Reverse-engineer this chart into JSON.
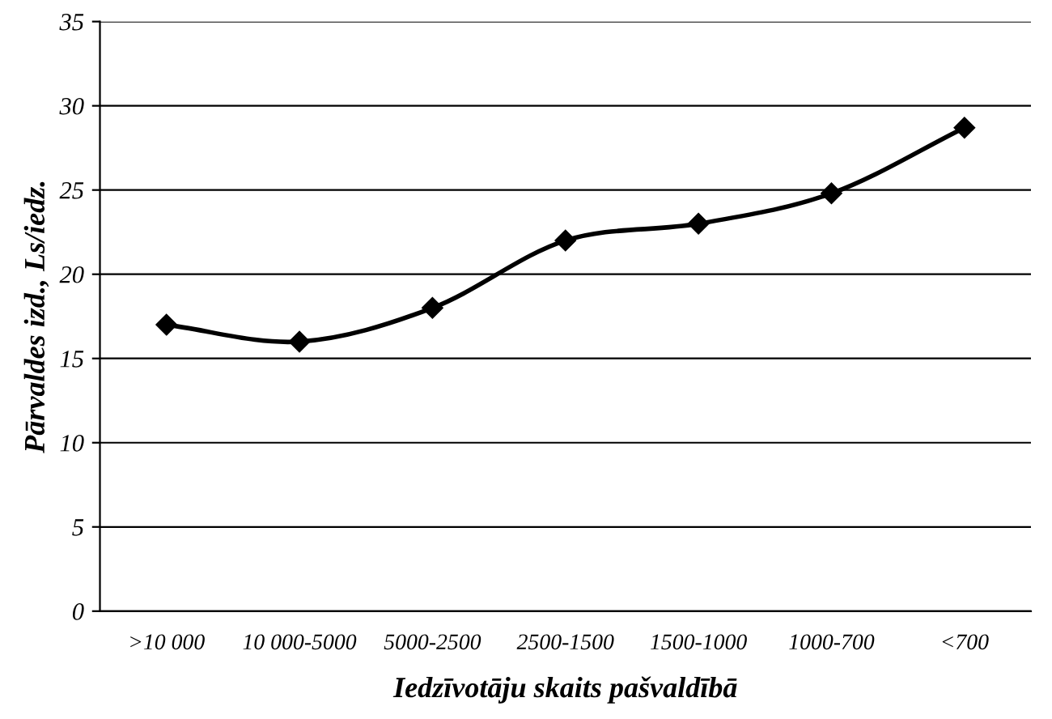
{
  "chart_data": {
    "type": "line",
    "xlabel": "Iedzīvotāju skaits pašvaldībā",
    "ylabel": "Pārvaldes izd., Ls/iedz.",
    "categories": [
      ">10 000",
      "10 000-5000",
      "5000-2500",
      "2500-1500",
      "1500-1000",
      "1000-700",
      "<700"
    ],
    "series": [
      {
        "color": "#000000",
        "values": [
          17,
          16,
          18,
          22,
          23,
          24.8,
          28.7
        ]
      }
    ],
    "ylim": [
      0,
      35
    ],
    "yticks": [
      0,
      5,
      10,
      15,
      20,
      25,
      30,
      35
    ],
    "grid": "y",
    "marker": "diamond",
    "line_style": "solid"
  }
}
